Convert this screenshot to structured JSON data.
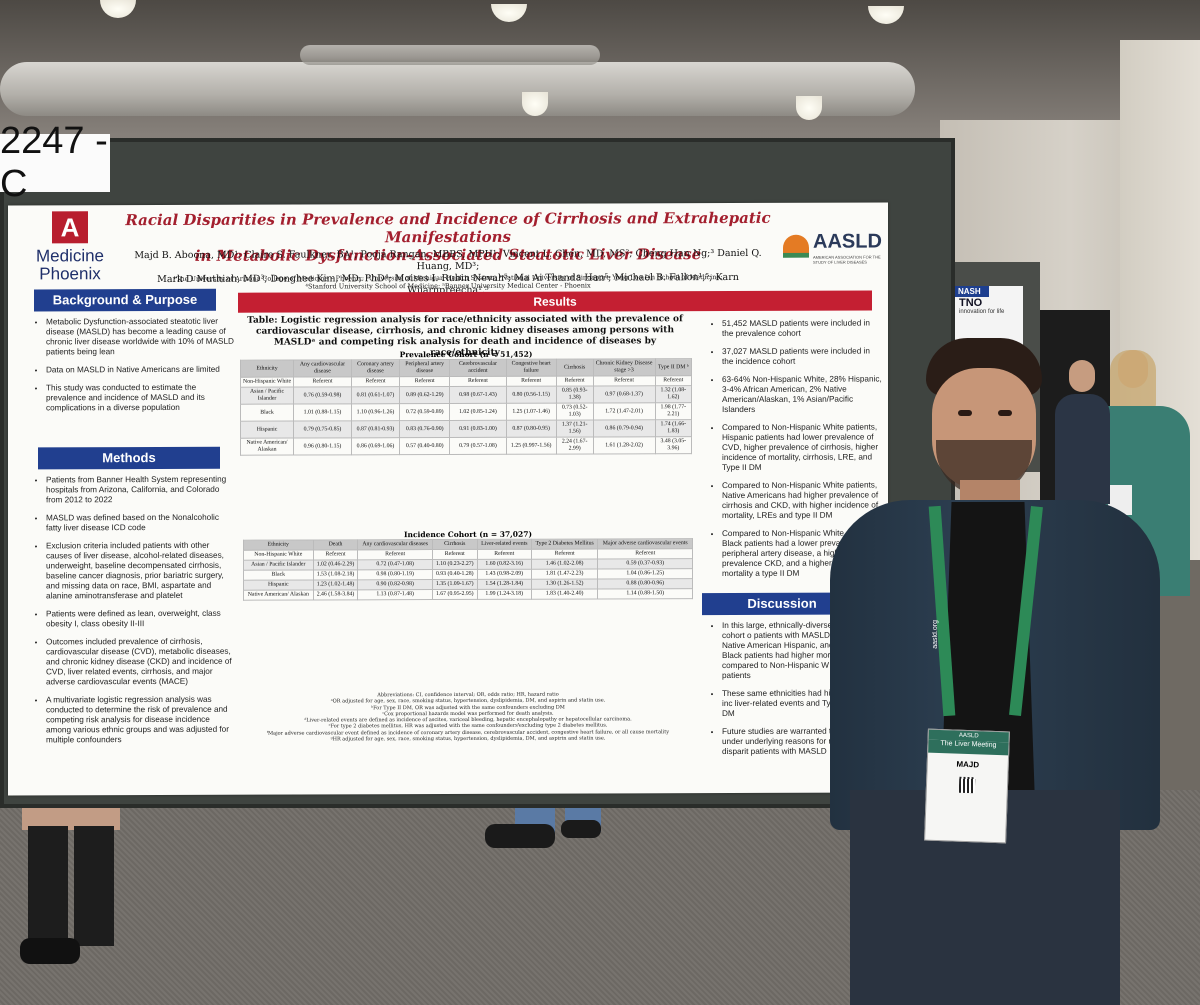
{
  "board": {
    "label": "2247 - C"
  },
  "poster": {
    "title_line1": "Racial Disparities in Prevalence and Incidence of Cirrhosis and Extrahepatic Manifestations",
    "title_line2": "in Metabolic Dysfunction-Associated Steatotic Liver Disease",
    "authors_line1": "Majd B. Aboona, MD¹; Claire S. Faulkner, BA¹; Pooja Rangan, MBBS, MPH¹; Vincent L. Chen, MD, MS²; Cheng Han Ng;³ Daniel Q. Huang, MD³;",
    "authors_line2": "Mark D Muthiah, MD³; Donghee Kim, MD, PhD⁴; Moises I. Rubin Nevah⁵; Ma Ai Thanda Han⁵; Michael B. Fallon¹,⁵; Karn Wijarnpreecha¹,⁵",
    "affil_line1": "¹The University of Arizona College of Medicine – Phoenix; ²University of Michigan Health System; ³National University of Singapore Yong Loo Lin School of Medicine;",
    "affil_line2": "⁴Stanford University School of Medicine; ⁵Banner University Medical Center - Phoenix",
    "logo_left_letter": "A",
    "logo_left_text1": "Medicine",
    "logo_left_text2": "Phoenix",
    "logo_right_text": "AASLD",
    "logo_right_sub": "AMERICAN ASSOCIATION FOR THE STUDY OF LIVER DISEASES",
    "background": {
      "header": "Background & Purpose",
      "bullets": [
        "Metabolic Dysfunction-associated steatotic liver disease (MASLD) has become a leading cause of chronic liver disease worldwide with 10% of MASLD patients being lean",
        "Data on MASLD in Native Americans are limited",
        "This study was conducted to estimate the prevalence and incidence of MASLD and its complications in a diverse population"
      ]
    },
    "methods": {
      "header": "Methods",
      "bullets": [
        "Patients from Banner Health System representing hospitals from Arizona, California, and Colorado from 2012 to 2022",
        "MASLD was defined based on the Nonalcoholic fatty liver disease ICD code",
        "Exclusion criteria included patients with other causes of liver disease, alcohol-related diseases, underweight, baseline decompensated cirrhosis, baseline cancer diagnosis, prior bariatric surgery, and missing data on race, BMI, aspartate and alanine aminotransferase and platelet",
        "Patients were defined as lean, overweight, class obesity I, class obesity II-III",
        "Outcomes included prevalence of cirrhosis, cardiovascular disease (CVD), metabolic diseases, and chronic kidney disease (CKD) and incidence of CVD, liver related events, cirrhosis, and major adverse cardiovascular events (MACE)",
        "A multivariate logistic regression analysis was conducted to determine the risk of prevalence and competing risk analysis for disease incidence among various ethnic groups and was adjusted for multiple confounders"
      ]
    },
    "results": {
      "header": "Results",
      "table_title": "Table: Logistic regression analysis for race/ethnicity associated with the prevalence of cardiovascular disease, cirrhosis, and chronic kidney diseases among persons with MASLDᵃ and competing risk analysis for death and incidence of diseases by race/ethnicity",
      "prevalence_caption": "Prevalence Cohort (n = 51,452)",
      "prevalence_headers": [
        "Ethnicity",
        "Any cardiovascular disease",
        "Coronary artery disease",
        "Peripheral artery disease",
        "Cerebrovascular accident",
        "Congestive heart failure",
        "Cirrhosis",
        "Chronic Kidney Disease stage >3",
        "Type II DM ᵇ"
      ],
      "prevalence_rows": [
        [
          "Non-Hispanic White",
          "Referent",
          "Referent",
          "Referent",
          "Referent",
          "Referent",
          "Referent",
          "Referent",
          "Referent"
        ],
        [
          "Asian / Pacific Islander",
          "0.76 (0.59-0.98)",
          "0.81 (0.61-1.07)",
          "0.89 (0.62-1.29)",
          "0.98 (0.67-1.43)",
          "0.80 (0.56-1.15)",
          "0.85 (0.93-1.38)",
          "0.97 (0.68-1.37)",
          "1.32 (1.08-1.62)"
        ],
        [
          "Black",
          "1.01 (0.88-1.15)",
          "1.10 (0.96-1.26)",
          "0.72 (0.59-0.89)",
          "1.02 (0.85-1.24)",
          "1.25 (1.07-1.46)",
          "0.73 (0.52-1.03)",
          "1.72 (1.47-2.01)",
          "1.98 (1.77-2.21)"
        ],
        [
          "Hispanic",
          "0.79 (0.75-0.85)",
          "0.87 (0.81-0.93)",
          "0.83 (0.76-0.90)",
          "0.91 (0.83-1.00)",
          "0.87 (0.80-0.95)",
          "1.37 (1.21-1.56)",
          "0.86 (0.79-0.94)",
          "1.74 (1.66-1.83)"
        ],
        [
          "Native American/ Alaskan",
          "0.96 (0.80-1.15)",
          "0.86 (0.69-1.06)",
          "0.57 (0.40-0.80)",
          "0.79 (0.57-1.08)",
          "1.25 (0.997-1.56)",
          "2.24 (1.67-2.99)",
          "1.61 (1.28-2.02)",
          "3.48 (3.05-3.96)"
        ]
      ],
      "incidence_caption": "Incidence Cohort (n = 37,027)",
      "incidence_headers": [
        "Ethnicity",
        "Death",
        "Any cardiovascular diseases",
        "Cirrhosis",
        "Liver-related events",
        "Type 2 Diabetes Mellitus",
        "Major adverse cardiovascular events"
      ],
      "incidence_rows": [
        [
          "Non-Hispanic White",
          "Referent",
          "Referent",
          "Referent",
          "Referent",
          "Referent",
          "Referent"
        ],
        [
          "Asian / Pacific Islander",
          "1.02 (0.46-2.29)",
          "0.72 (0.47-1.08)",
          "1.10 (0.23-2.27)",
          "1.60 (0.82-3.16)",
          "1.46 (1.02-2.08)",
          "0.59 (0.37-0.93)"
        ],
        [
          "Black",
          "1.53 (1.08-2.18)",
          "0.98 (0.80-1.19)",
          "0.93 (0.40-1.28)",
          "1.43 (0.98-2.09)",
          "1.81 (1.47-2.23)",
          "1.04 (0.86-1.25)"
        ],
        [
          "Hispanic",
          "1.23 (1.02-1.48)",
          "0.90 (0.82-0.98)",
          "1.35 (1.09-1.67)",
          "1.54 (1.28-1.84)",
          "1.30 (1.26-1.52)",
          "0.88 (0.80-0.96)"
        ],
        [
          "Native American/ Alaskan",
          "2.46 (1.58-3.84)",
          "1.13 (0.87-1.48)",
          "1.67 (0.95-2.95)",
          "1.99 (1.24-3.18)",
          "1.83 (1.40-2.40)",
          "1.14 (0.88-1.50)"
        ]
      ],
      "footnotes": [
        "Abbreviations: CI, confidence interval; OR, odds ratio; HR, hazard ratio",
        "ᵃOR adjusted for age, sex, race, smoking status, hypertension, dyslipidemia, DM, and aspirin and statin use.",
        "ᵇFor Type II DM, OR was adjusted with the same confounders excluding DM",
        "ᶜCox proportional hazards model was performed for death analysis.",
        "ᵈLiver-related events are defined as incidence of ascites, variceal bleeding, hepatic encephalopathy or hepatocellular carcinoma.",
        "ᵉFor type 2 diabetes mellitus, HR was adjusted with the same confoundersᶠexcluding type 2 diabetes mellitus.",
        "ᶠMajor adverse cardiovascular event defined as incidence of coronary artery disease, cerebrovascular accident, congestive heart failure, or all cause mortality",
        "ᵍHR adjusted for age, sex, race, smoking status, hypertension, dyslipidemia, DM, and aspirin and statin use."
      ],
      "bullets": [
        "51,452 MASLD patients were included in the prevalence cohort",
        "37,027 MASLD patients were included in the incidence cohort",
        "63-64% Non-Hispanic White, 28% Hispanic, 3-4% African American, 2% Native American/Alaskan, 1% Asian/Pacific Islanders",
        "Compared to Non-Hispanic White patients, Hispanic patients had lower prevalence of CVD, higher prevalence of cirrhosis, higher incidence of mortality, cirrhosis, LRE, and Type II DM",
        "Compared to Non-Hispanic White patients, Native Americans had higher prevalence of cirrhosis and CKD, with higher incidence of mortality, LREs and type II DM",
        "Compared to Non-Hispanic White patients, Black patients had a lower prevalence of peripheral artery disease, a higher prevalence CKD, and a higher incidence of mortality a type II DM"
      ]
    },
    "discussion": {
      "header": "Discussion",
      "bullets": [
        "In this large, ethnically-diverse cohort o patients with MASLD, Native American Hispanic, and Black patients had higher mortality compared to Non-Hispanic W patients",
        "These same ethnicities had higher inc liver-related events and Type II DM",
        "Future studies are warranted to under underlying reasons for racial disparit patients with MASLD"
      ]
    }
  },
  "neighbor_poster": {
    "tag": "NASH",
    "brand": "TNO",
    "sub": "innovation for life"
  },
  "badge": {
    "event": "The Liver Meeting",
    "org": "AASLD",
    "name": "MAJD",
    "lanyard": "aasld.org"
  }
}
